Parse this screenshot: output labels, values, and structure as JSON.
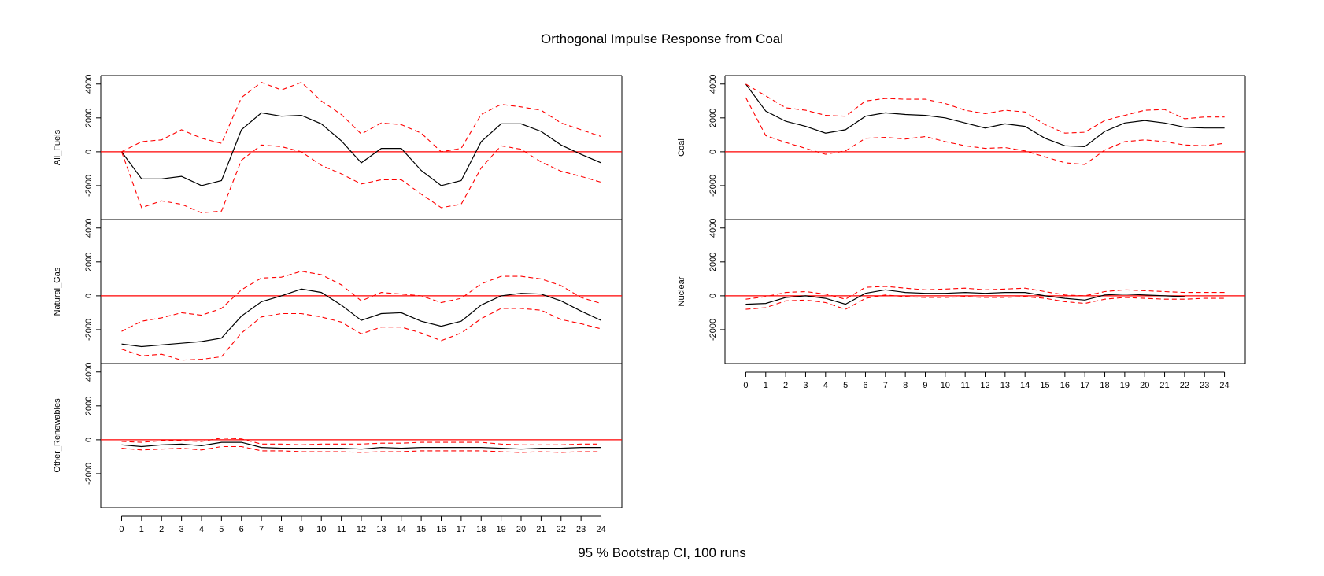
{
  "title": "Orthogonal Impulse Response from Coal",
  "caption": "95 % Bootstrap CI,  100 runs",
  "colors": {
    "response": "#000000",
    "bounds": "#ff0000",
    "zero_line": "#ff0000",
    "axes": "#000000"
  },
  "chart_data": [
    {
      "type": "line",
      "ylabel": "All_Fuels",
      "ylim": [
        -4000,
        4500
      ],
      "yticks": [
        -2000,
        0,
        2000,
        4000
      ],
      "x": [
        0,
        1,
        2,
        3,
        4,
        5,
        6,
        7,
        8,
        9,
        10,
        11,
        12,
        13,
        14,
        15,
        16,
        17,
        18,
        19,
        20,
        21,
        22,
        23,
        24
      ],
      "series": [
        {
          "role": "response",
          "values": [
            0,
            -1600,
            -1600,
            -1450,
            -2000,
            -1700,
            1300,
            2300,
            2100,
            2150,
            1650,
            650,
            -650,
            200,
            200,
            -1100,
            -2000,
            -1700,
            600,
            1650,
            1650,
            1200,
            400,
            -150,
            -650
          ]
        },
        {
          "role": "upper",
          "values": [
            0,
            600,
            700,
            1300,
            800,
            500,
            3200,
            4100,
            3650,
            4100,
            3000,
            2200,
            1050,
            1700,
            1600,
            1100,
            0,
            200,
            2200,
            2800,
            2650,
            2450,
            1700,
            1300,
            900
          ]
        },
        {
          "role": "lower",
          "values": [
            0,
            -3300,
            -2900,
            -3100,
            -3600,
            -3500,
            -500,
            400,
            300,
            0,
            -800,
            -1300,
            -1900,
            -1650,
            -1650,
            -2500,
            -3300,
            -3100,
            -950,
            350,
            150,
            -600,
            -1150,
            -1450,
            -1800
          ]
        }
      ]
    },
    {
      "type": "line",
      "ylabel": "Natural_Gas",
      "ylim": [
        -4000,
        4500
      ],
      "yticks": [
        -2000,
        0,
        2000,
        4000
      ],
      "x": [
        0,
        1,
        2,
        3,
        4,
        5,
        6,
        7,
        8,
        9,
        10,
        11,
        12,
        13,
        14,
        15,
        16,
        17,
        18,
        19,
        20,
        21,
        22,
        23,
        24
      ],
      "series": [
        {
          "role": "response",
          "values": [
            -2850,
            -3000,
            -2900,
            -2800,
            -2700,
            -2500,
            -1200,
            -350,
            0,
            400,
            200,
            -550,
            -1450,
            -1050,
            -1000,
            -1500,
            -1800,
            -1500,
            -550,
            0,
            150,
            100,
            -300,
            -900,
            -1450
          ]
        },
        {
          "role": "upper",
          "values": [
            -2100,
            -1500,
            -1300,
            -1000,
            -1150,
            -750,
            350,
            1050,
            1100,
            1450,
            1250,
            650,
            -300,
            200,
            100,
            0,
            -400,
            -150,
            700,
            1150,
            1150,
            1000,
            600,
            -100,
            -450
          ]
        },
        {
          "role": "lower",
          "values": [
            -3150,
            -3550,
            -3450,
            -3800,
            -3750,
            -3600,
            -2200,
            -1250,
            -1050,
            -1050,
            -1250,
            -1550,
            -2250,
            -1850,
            -1850,
            -2200,
            -2650,
            -2200,
            -1350,
            -750,
            -750,
            -850,
            -1400,
            -1650,
            -1950
          ]
        }
      ]
    },
    {
      "type": "line",
      "ylabel": "Other_Renewables",
      "ylim": [
        -4000,
        4500
      ],
      "yticks": [
        -2000,
        0,
        2000,
        4000
      ],
      "x": [
        0,
        1,
        2,
        3,
        4,
        5,
        6,
        7,
        8,
        9,
        10,
        11,
        12,
        13,
        14,
        15,
        16,
        17,
        18,
        19,
        20,
        21,
        22,
        23,
        24
      ],
      "series": [
        {
          "role": "response",
          "values": [
            -300,
            -400,
            -300,
            -250,
            -350,
            -150,
            -150,
            -450,
            -500,
            -500,
            -500,
            -500,
            -550,
            -450,
            -500,
            -450,
            -450,
            -450,
            -450,
            -500,
            -550,
            -500,
            -500,
            -450,
            -450
          ]
        },
        {
          "role": "upper",
          "values": [
            -100,
            -150,
            -50,
            -50,
            -100,
            100,
            50,
            -250,
            -250,
            -300,
            -250,
            -250,
            -250,
            -200,
            -200,
            -150,
            -150,
            -150,
            -150,
            -250,
            -300,
            -300,
            -300,
            -250,
            -250
          ]
        },
        {
          "role": "lower",
          "values": [
            -500,
            -600,
            -550,
            -500,
            -600,
            -400,
            -400,
            -650,
            -650,
            -700,
            -700,
            -700,
            -750,
            -700,
            -700,
            -650,
            -650,
            -650,
            -650,
            -700,
            -750,
            -700,
            -750,
            -700,
            -700
          ]
        }
      ]
    },
    {
      "type": "line",
      "ylabel": "Coal",
      "ylim": [
        -4000,
        4500
      ],
      "yticks": [
        -2000,
        0,
        2000,
        4000
      ],
      "x": [
        0,
        1,
        2,
        3,
        4,
        5,
        6,
        7,
        8,
        9,
        10,
        11,
        12,
        13,
        14,
        15,
        16,
        17,
        18,
        19,
        20,
        21,
        22,
        23,
        24
      ],
      "series": [
        {
          "role": "response",
          "values": [
            4000,
            2400,
            1800,
            1500,
            1100,
            1300,
            2100,
            2300,
            2200,
            2150,
            2000,
            1700,
            1400,
            1650,
            1500,
            800,
            350,
            300,
            1200,
            1700,
            1850,
            1700,
            1450,
            1400,
            1400
          ]
        },
        {
          "role": "upper",
          "values": [
            4000,
            3300,
            2600,
            2450,
            2150,
            2100,
            3000,
            3150,
            3100,
            3100,
            2850,
            2450,
            2250,
            2450,
            2350,
            1600,
            1100,
            1150,
            1850,
            2150,
            2450,
            2500,
            1950,
            2050,
            2050
          ]
        },
        {
          "role": "lower",
          "values": [
            3200,
            950,
            550,
            200,
            -150,
            50,
            800,
            850,
            750,
            900,
            600,
            350,
            200,
            250,
            50,
            -300,
            -650,
            -750,
            100,
            600,
            700,
            600,
            400,
            350,
            500
          ]
        }
      ]
    },
    {
      "type": "line",
      "ylabel": "Nuclear",
      "ylim": [
        -4000,
        4500
      ],
      "yticks": [
        -2000,
        0,
        2000,
        4000
      ],
      "x": [
        0,
        1,
        2,
        3,
        4,
        5,
        6,
        7,
        8,
        9,
        10,
        11,
        12,
        13,
        14,
        15,
        16,
        17,
        18,
        19,
        20,
        21,
        22,
        23,
        24
      ],
      "xticks": [
        0,
        1,
        2,
        3,
        4,
        5,
        6,
        7,
        8,
        9,
        10,
        11,
        12,
        13,
        14,
        15,
        16,
        17,
        18,
        19,
        20,
        21,
        22,
        23,
        24
      ],
      "series": [
        {
          "role": "response",
          "values": [
            -500,
            -450,
            -100,
            0,
            -150,
            -500,
            150,
            350,
            200,
            150,
            150,
            200,
            150,
            200,
            200,
            0,
            -150,
            -250,
            50,
            100,
            50,
            0,
            -50,
            null,
            null
          ]
        },
        {
          "role": "upper",
          "values": [
            -200,
            -50,
            200,
            250,
            100,
            -200,
            500,
            550,
            450,
            350,
            400,
            450,
            350,
            400,
            450,
            250,
            50,
            0,
            250,
            350,
            300,
            250,
            200,
            200,
            200
          ]
        },
        {
          "role": "lower",
          "values": [
            -800,
            -700,
            -300,
            -250,
            -400,
            -800,
            -150,
            50,
            -50,
            -100,
            -100,
            -50,
            -100,
            -100,
            -50,
            -150,
            -350,
            -450,
            -200,
            -100,
            -150,
            -200,
            -200,
            -150,
            -150
          ]
        }
      ]
    }
  ]
}
